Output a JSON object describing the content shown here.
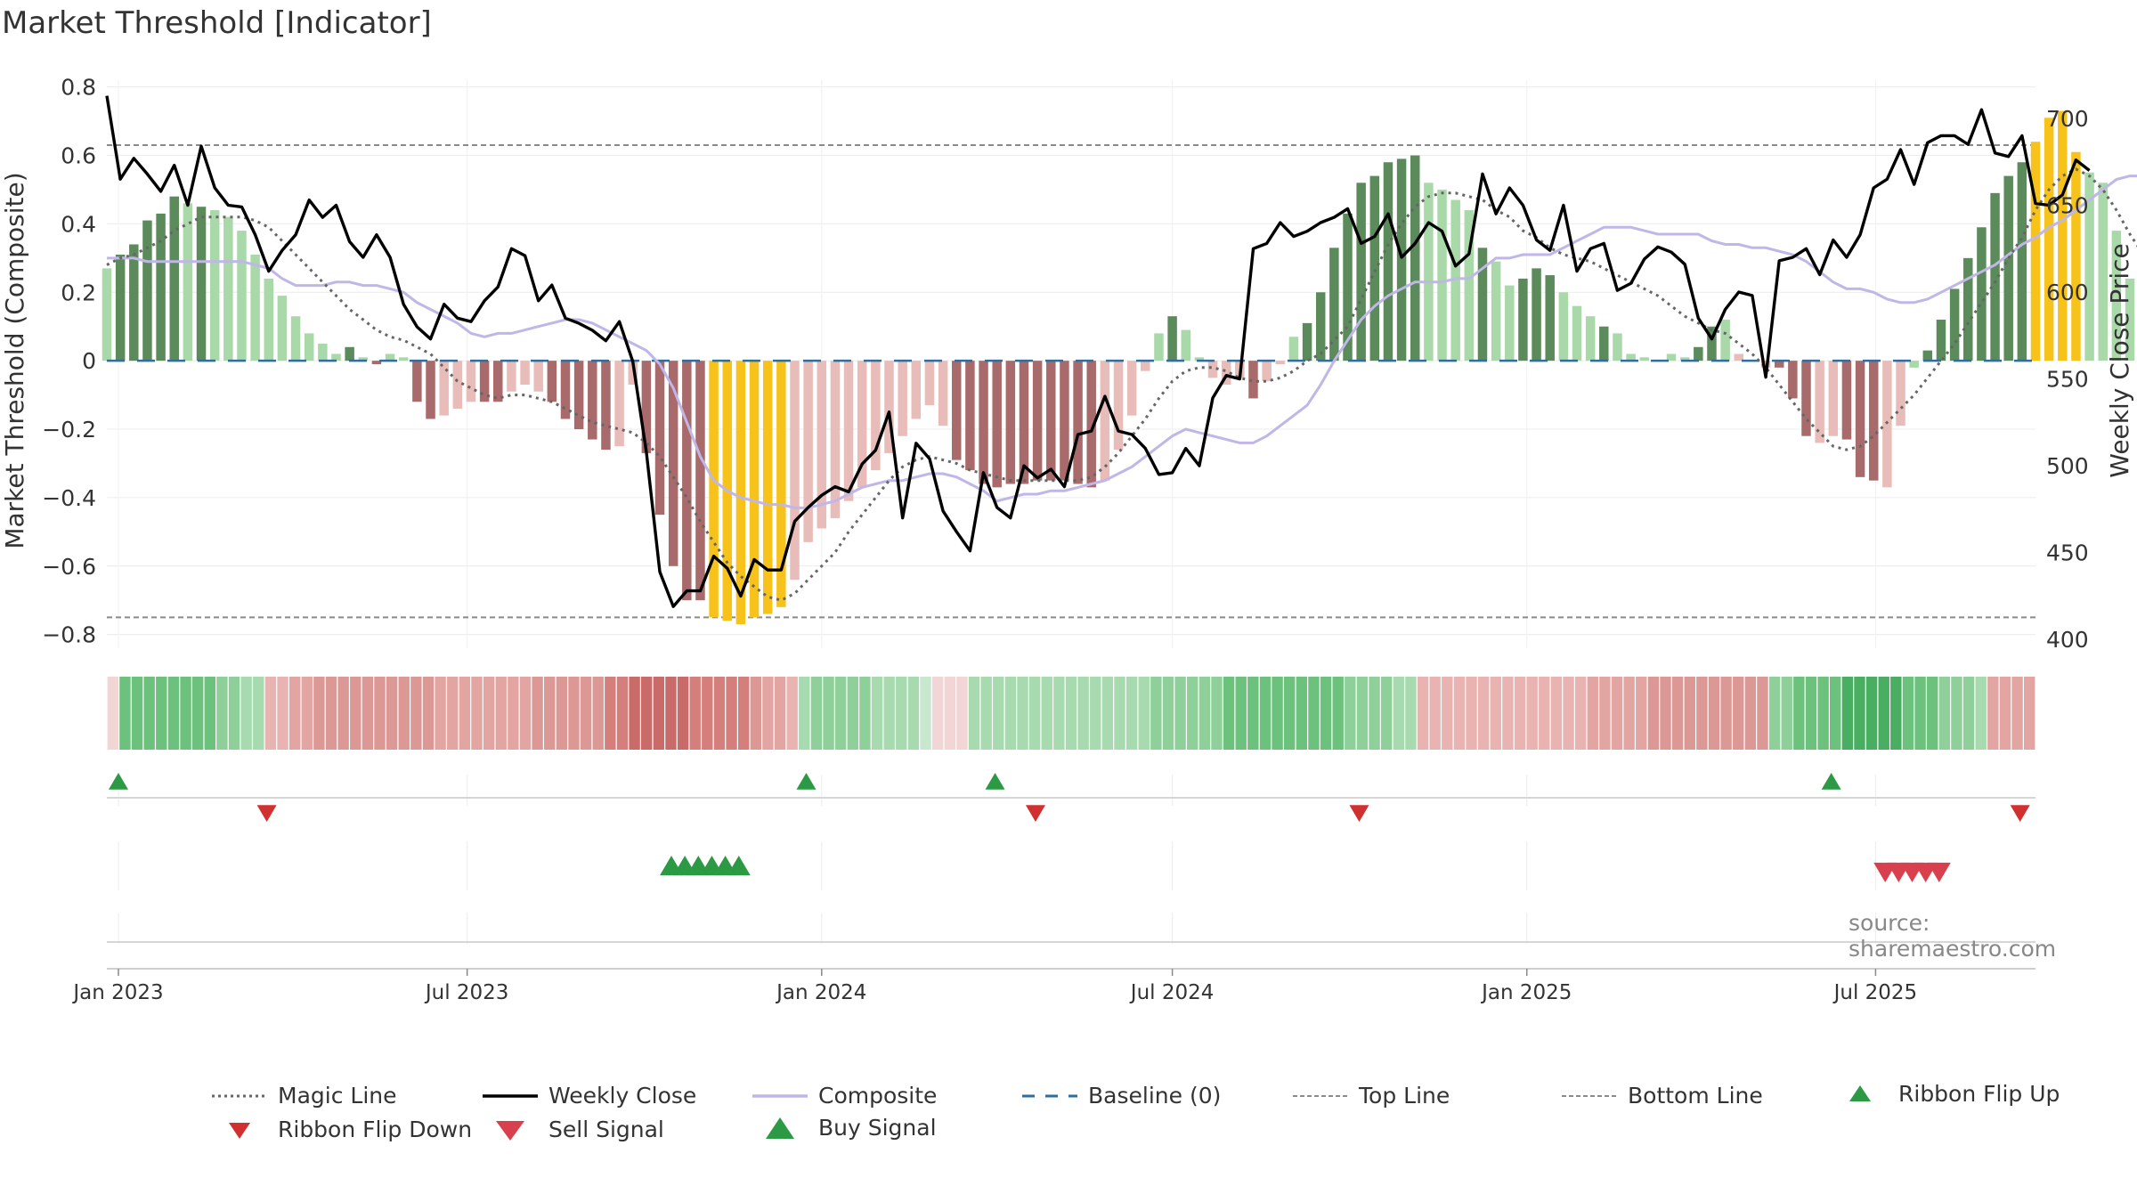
{
  "page": {
    "title": "Market Threshold [Indicator]",
    "source": "source: sharemaestro.com"
  },
  "chart_data": {
    "type": "bar",
    "title": "Market Threshold [Indicator]",
    "ylabel": "Market Threshold (Composite)",
    "y2label": "Weekly Close Price",
    "ylim": [
      -0.84,
      0.82
    ],
    "y2lim": [
      395,
      722
    ],
    "yticks": [
      0.8,
      0.6,
      0.4,
      0.2,
      0,
      -0.2,
      -0.4,
      -0.6,
      -0.8
    ],
    "yticklabels": [
      "0.8",
      "0.6",
      "0.4",
      "0.2",
      "0",
      "−0.2",
      "−0.4",
      "−0.6",
      "−0.8"
    ],
    "y2ticks": [
      700,
      650,
      600,
      550,
      500,
      450,
      400
    ],
    "y2ticklabels": [
      "700",
      "650",
      "600",
      "550",
      "500",
      "450",
      "400"
    ],
    "x_start": "2022-12-26",
    "x_end": "2025-09-22",
    "x_ticks": [
      {
        "date": "2023-01-01",
        "label": "Jan 2023"
      },
      {
        "date": "2023-07-01",
        "label": "Jul 2023"
      },
      {
        "date": "2024-01-01",
        "label": "Jan 2024"
      },
      {
        "date": "2024-07-01",
        "label": "Jul 2024"
      },
      {
        "date": "2025-01-01",
        "label": "Jan 2025"
      },
      {
        "date": "2025-07-01",
        "label": "Jul 2025"
      }
    ],
    "top_line": 0.63,
    "bottom_line": -0.75,
    "baseline": 0,
    "grid": true,
    "legend_position": "bottom",
    "colors": {
      "bull_strong": "#5b8a5b",
      "bull_weak": "#a9d8a9",
      "bear_strong": "#a86a6a",
      "bear_weak": "#e8bcb8",
      "extreme": "#f7c31a",
      "weekly_close": "#000000",
      "magic_line": "#666666",
      "composite": "#c0b6e8",
      "baseline": "#2f6fa0",
      "threshold": "#8a8a8a",
      "buy": "#2c9a44",
      "sell": "#d9404e",
      "flip_down": "#d03030",
      "ribbon_green": "#3e9e52",
      "ribbon_red": "#c86060"
    },
    "composite_bars": [
      0.27,
      0.31,
      0.34,
      0.41,
      0.43,
      0.48,
      0.46,
      0.45,
      0.44,
      0.42,
      0.38,
      0.31,
      0.24,
      0.19,
      0.13,
      0.08,
      0.05,
      0.02,
      0.04,
      0.01,
      -0.01,
      0.02,
      0.01,
      -0.12,
      -0.17,
      -0.16,
      -0.14,
      -0.12,
      -0.12,
      -0.12,
      -0.09,
      -0.07,
      -0.09,
      -0.12,
      -0.17,
      -0.2,
      -0.23,
      -0.26,
      -0.25,
      -0.07,
      -0.27,
      -0.45,
      -0.6,
      -0.7,
      -0.7,
      -0.75,
      -0.76,
      -0.77,
      -0.75,
      -0.74,
      -0.72,
      -0.64,
      -0.53,
      -0.49,
      -0.46,
      -0.41,
      -0.37,
      -0.32,
      -0.27,
      -0.22,
      -0.17,
      -0.13,
      -0.19,
      -0.29,
      -0.32,
      -0.36,
      -0.37,
      -0.36,
      -0.36,
      -0.35,
      -0.35,
      -0.35,
      -0.36,
      -0.37,
      -0.35,
      -0.26,
      -0.16,
      -0.03,
      0.08,
      0.13,
      0.09,
      0.01,
      -0.05,
      -0.07,
      -0.05,
      -0.11,
      -0.06,
      -0.01,
      0.07,
      0.11,
      0.2,
      0.33,
      0.43,
      0.52,
      0.54,
      0.58,
      0.59,
      0.6,
      0.52,
      0.5,
      0.47,
      0.44,
      0.33,
      0.29,
      0.22,
      0.24,
      0.27,
      0.25,
      0.2,
      0.16,
      0.13,
      0.1,
      0.08,
      0.02,
      0.01,
      0.0,
      0.02,
      0.01,
      0.04,
      0.1,
      0.12,
      0.02,
      0.0,
      -0.02,
      -0.02,
      -0.11,
      -0.22,
      -0.24,
      -0.22,
      -0.23,
      -0.34,
      -0.35,
      -0.37,
      -0.19,
      -0.02,
      0.03,
      0.12,
      0.21,
      0.3,
      0.39,
      0.49,
      0.54,
      0.58,
      0.64,
      0.71,
      0.73,
      0.61,
      0.55,
      0.52,
      0.38,
      0.24,
      0.14,
      0.13,
      0.14
    ],
    "bar_colors": [
      "bull_weak",
      "bull_strong",
      "bull_strong",
      "bull_strong",
      "bull_strong",
      "bull_strong",
      "bull_weak",
      "bull_strong",
      "bull_weak",
      "bull_weak",
      "bull_weak",
      "bull_weak",
      "bull_weak",
      "bull_weak",
      "bull_weak",
      "bull_weak",
      "bull_weak",
      "bull_weak",
      "bull_strong",
      "bull_weak",
      "bear_strong",
      "bull_weak",
      "bull_weak",
      "bear_strong",
      "bear_strong",
      "bear_weak",
      "bear_weak",
      "bear_weak",
      "bear_strong",
      "bear_strong",
      "bear_weak",
      "bear_weak",
      "bear_weak",
      "bear_strong",
      "bear_strong",
      "bear_strong",
      "bear_strong",
      "bear_strong",
      "bear_weak",
      "bear_weak",
      "bear_strong",
      "bear_strong",
      "bear_strong",
      "bear_strong",
      "bear_strong",
      "extreme",
      "extreme",
      "extreme",
      "extreme",
      "extreme",
      "extreme",
      "bear_weak",
      "bear_weak",
      "bear_weak",
      "bear_weak",
      "bear_weak",
      "bear_weak",
      "bear_weak",
      "bear_weak",
      "bear_weak",
      "bear_weak",
      "bear_weak",
      "bear_weak",
      "bear_strong",
      "bear_strong",
      "bear_strong",
      "bear_strong",
      "bear_strong",
      "bear_strong",
      "bear_strong",
      "bear_strong",
      "bear_strong",
      "bear_strong",
      "bear_strong",
      "bear_weak",
      "bear_weak",
      "bear_weak",
      "bear_weak",
      "bull_weak",
      "bull_strong",
      "bull_weak",
      "bull_weak",
      "bear_weak",
      "bear_weak",
      "bear_weak",
      "bear_strong",
      "bear_weak",
      "bear_weak",
      "bull_weak",
      "bull_strong",
      "bull_strong",
      "bull_strong",
      "bull_strong",
      "bull_strong",
      "bull_strong",
      "bull_strong",
      "bull_strong",
      "bull_strong",
      "bull_weak",
      "bull_weak",
      "bull_weak",
      "bull_weak",
      "bull_strong",
      "bull_weak",
      "bull_weak",
      "bull_strong",
      "bull_strong",
      "bull_strong",
      "bull_weak",
      "bull_weak",
      "bull_weak",
      "bull_strong",
      "bull_weak",
      "bull_weak",
      "bull_weak",
      "bull_weak",
      "bull_weak",
      "bull_weak",
      "bull_strong",
      "bull_strong",
      "bull_weak",
      "bear_weak",
      "bear_weak",
      "bear_weak",
      "bear_strong",
      "bear_strong",
      "bear_strong",
      "bear_weak",
      "bear_weak",
      "bear_strong",
      "bear_strong",
      "bear_strong",
      "bear_weak",
      "bear_weak",
      "bull_weak",
      "bull_strong",
      "bull_strong",
      "bull_strong",
      "bull_strong",
      "bull_strong",
      "bull_strong",
      "bull_strong",
      "bull_strong",
      "extreme",
      "extreme",
      "extreme",
      "extreme",
      "bull_weak",
      "bull_weak",
      "bull_weak",
      "bull_weak",
      "bull_weak",
      "bull_weak",
      "bull_strong"
    ],
    "composite_line": [
      0.3,
      0.3,
      0.3,
      0.29,
      0.29,
      0.29,
      0.29,
      0.29,
      0.29,
      0.29,
      0.29,
      0.28,
      0.27,
      0.24,
      0.22,
      0.22,
      0.22,
      0.23,
      0.23,
      0.22,
      0.22,
      0.21,
      0.2,
      0.17,
      0.15,
      0.13,
      0.11,
      0.08,
      0.07,
      0.08,
      0.08,
      0.09,
      0.1,
      0.11,
      0.12,
      0.12,
      0.11,
      0.09,
      0.07,
      0.05,
      0.03,
      -0.01,
      -0.08,
      -0.18,
      -0.28,
      -0.35,
      -0.38,
      -0.4,
      -0.41,
      -0.42,
      -0.42,
      -0.43,
      -0.43,
      -0.42,
      -0.41,
      -0.39,
      -0.37,
      -0.36,
      -0.35,
      -0.35,
      -0.34,
      -0.33,
      -0.33,
      -0.34,
      -0.36,
      -0.38,
      -0.41,
      -0.4,
      -0.39,
      -0.39,
      -0.38,
      -0.38,
      -0.37,
      -0.36,
      -0.35,
      -0.33,
      -0.31,
      -0.28,
      -0.25,
      -0.22,
      -0.2,
      -0.21,
      -0.22,
      -0.23,
      -0.24,
      -0.24,
      -0.22,
      -0.19,
      -0.16,
      -0.13,
      -0.07,
      0.0,
      0.06,
      0.12,
      0.16,
      0.19,
      0.21,
      0.23,
      0.23,
      0.23,
      0.24,
      0.24,
      0.27,
      0.3,
      0.3,
      0.31,
      0.31,
      0.31,
      0.33,
      0.35,
      0.37,
      0.39,
      0.39,
      0.39,
      0.38,
      0.37,
      0.37,
      0.37,
      0.37,
      0.35,
      0.34,
      0.34,
      0.33,
      0.33,
      0.32,
      0.31,
      0.29,
      0.26,
      0.23,
      0.21,
      0.21,
      0.2,
      0.18,
      0.17,
      0.17,
      0.18,
      0.2,
      0.22,
      0.24,
      0.26,
      0.28,
      0.31,
      0.34,
      0.36,
      0.39,
      0.41,
      0.44,
      0.47,
      0.5,
      0.53,
      0.54,
      0.54,
      0.53,
      0.52,
      0.51,
      0.51,
      0.52
    ],
    "magic_line": [
      0.28,
      0.3,
      0.31,
      0.33,
      0.35,
      0.38,
      0.4,
      0.42,
      0.42,
      0.42,
      0.42,
      0.41,
      0.39,
      0.35,
      0.31,
      0.27,
      0.23,
      0.19,
      0.15,
      0.12,
      0.09,
      0.07,
      0.06,
      0.04,
      0.02,
      -0.02,
      -0.06,
      -0.08,
      -0.1,
      -0.11,
      -0.1,
      -0.1,
      -0.11,
      -0.12,
      -0.14,
      -0.16,
      -0.18,
      -0.19,
      -0.2,
      -0.21,
      -0.24,
      -0.28,
      -0.34,
      -0.4,
      -0.47,
      -0.53,
      -0.59,
      -0.63,
      -0.66,
      -0.69,
      -0.7,
      -0.68,
      -0.64,
      -0.6,
      -0.56,
      -0.5,
      -0.45,
      -0.4,
      -0.35,
      -0.31,
      -0.29,
      -0.28,
      -0.29,
      -0.3,
      -0.32,
      -0.33,
      -0.34,
      -0.35,
      -0.35,
      -0.35,
      -0.35,
      -0.35,
      -0.35,
      -0.34,
      -0.31,
      -0.27,
      -0.22,
      -0.17,
      -0.11,
      -0.06,
      -0.03,
      -0.02,
      -0.02,
      -0.03,
      -0.05,
      -0.06,
      -0.06,
      -0.05,
      -0.03,
      0.0,
      0.02,
      0.06,
      0.1,
      0.18,
      0.26,
      0.34,
      0.4,
      0.45,
      0.48,
      0.49,
      0.49,
      0.48,
      0.47,
      0.44,
      0.42,
      0.38,
      0.36,
      0.33,
      0.31,
      0.3,
      0.29,
      0.27,
      0.25,
      0.23,
      0.21,
      0.19,
      0.16,
      0.13,
      0.11,
      0.09,
      0.08,
      0.05,
      0.02,
      -0.02,
      -0.07,
      -0.12,
      -0.17,
      -0.21,
      -0.25,
      -0.26,
      -0.25,
      -0.22,
      -0.18,
      -0.14,
      -0.1,
      -0.05,
      0.0,
      0.05,
      0.11,
      0.17,
      0.23,
      0.3,
      0.36,
      0.44,
      0.5,
      0.54,
      0.56,
      0.54,
      0.5,
      0.44,
      0.37,
      0.31,
      0.28,
      0.25
    ],
    "weekly_close": [
      713,
      665,
      677,
      668,
      658,
      673,
      650,
      684,
      660,
      650,
      649,
      633,
      612,
      624,
      633,
      653,
      643,
      650,
      629,
      620,
      633,
      620,
      593,
      580,
      573,
      593,
      585,
      583,
      595,
      603,
      625,
      621,
      595,
      604,
      585,
      582,
      578,
      572,
      583,
      560,
      508,
      439,
      419,
      428,
      428,
      448,
      441,
      425,
      446,
      440,
      440,
      468,
      476,
      483,
      488,
      485,
      501,
      509,
      531,
      470,
      513,
      504,
      474,
      462,
      451,
      496,
      476,
      470,
      500,
      493,
      498,
      488,
      518,
      520,
      540,
      520,
      518,
      510,
      495,
      496,
      510,
      500,
      539,
      552,
      550,
      625,
      628,
      640,
      632,
      635,
      640,
      643,
      648,
      628,
      632,
      645,
      620,
      628,
      640,
      635,
      615,
      622,
      668,
      645,
      660,
      650,
      630,
      624,
      650,
      612,
      625,
      628,
      601,
      605,
      619,
      626,
      623,
      616,
      585,
      573,
      590,
      600,
      598,
      551,
      618,
      620,
      625,
      610,
      630,
      620,
      633,
      660,
      665,
      682,
      662,
      686,
      690,
      690,
      685,
      705,
      680,
      678,
      690,
      651,
      650,
      656,
      676,
      670
    ]
  },
  "ribbon": {
    "colors": [
      "#f2d6d6",
      "#6cc17c",
      "#6cc17c",
      "#6cc17c",
      "#6cc17c",
      "#6cc17c",
      "#6cc17c",
      "#6cc17c",
      "#6cc17c",
      "#8fcf99",
      "#8fcf99",
      "#a7daaf",
      "#a7daaf",
      "#e8b3b0",
      "#e8b3b0",
      "#e3a5a2",
      "#e3a5a2",
      "#dc9894",
      "#dc9894",
      "#dc9894",
      "#dc9894",
      "#dc9894",
      "#dc9894",
      "#dc9894",
      "#dc9894",
      "#dc9894",
      "#dc9894",
      "#e3a5a2",
      "#e3a5a2",
      "#e3a5a2",
      "#e3a5a2",
      "#e3a5a2",
      "#e3a5a2",
      "#e3a5a2",
      "#e3a5a2",
      "#dc9894",
      "#dc9894",
      "#dc9894",
      "#dc9894",
      "#dc9894",
      "#dc9894",
      "#d47f7b",
      "#d47f7b",
      "#c96c69",
      "#c96c69",
      "#c96c69",
      "#c96c69",
      "#c96c69",
      "#d47f7b",
      "#d47f7b",
      "#d47f7b",
      "#d47f7b",
      "#d47f7b",
      "#dc9894",
      "#e3a5a2",
      "#e3a5a2",
      "#e8b3b0",
      "#a7daaf",
      "#8fcf99",
      "#8fcf99",
      "#8fcf99",
      "#8fcf99",
      "#8fcf99",
      "#a7daaf",
      "#a7daaf",
      "#a7daaf",
      "#a7daaf",
      "#c7e8cc",
      "#f2d6d6",
      "#f2d6d6",
      "#f2d6d6",
      "#a7daaf",
      "#a7daaf",
      "#a7daaf",
      "#a7daaf",
      "#a7daaf",
      "#a7daaf",
      "#a7daaf",
      "#a7daaf",
      "#a7daaf",
      "#a7daaf",
      "#a7daaf",
      "#a7daaf",
      "#a7daaf",
      "#a7daaf",
      "#a7daaf",
      "#8fcf99",
      "#8fcf99",
      "#8fcf99",
      "#8fcf99",
      "#8fcf99",
      "#8fcf99",
      "#6cc17c",
      "#6cc17c",
      "#6cc17c",
      "#6cc17c",
      "#6cc17c",
      "#6cc17c",
      "#6cc17c",
      "#6cc17c",
      "#6cc17c",
      "#6cc17c",
      "#8fcf99",
      "#8fcf99",
      "#8fcf99",
      "#8fcf99",
      "#a7daaf",
      "#a7daaf",
      "#e8b3b0",
      "#e8b3b0",
      "#e8b3b0",
      "#e8b3b0",
      "#e8b3b0",
      "#e8b3b0",
      "#e8b3b0",
      "#e8b3b0",
      "#e8b3b0",
      "#e8b3b0",
      "#e8b3b0",
      "#e8b3b0",
      "#e8b3b0",
      "#e8b3b0",
      "#e3a5a2",
      "#e3a5a2",
      "#e3a5a2",
      "#e3a5a2",
      "#e3a5a2",
      "#dc9894",
      "#dc9894",
      "#dc9894",
      "#dc9894",
      "#dc9894",
      "#dc9894",
      "#dc9894",
      "#dc9894",
      "#dc9894",
      "#dc9894",
      "#8fcf99",
      "#8fcf99",
      "#6cc17c",
      "#6cc17c",
      "#6cc17c",
      "#6cc17c",
      "#4aae62",
      "#4aae62",
      "#4aae62",
      "#4aae62",
      "#4aae62",
      "#6cc17c",
      "#6cc17c",
      "#6cc17c",
      "#8fcf99",
      "#8fcf99",
      "#8fcf99",
      "#a7daaf",
      "#e3a5a2",
      "#e3a5a2",
      "#e3a5a2",
      "#e3a5a2"
    ]
  },
  "signals": {
    "ribbon_flip_up": [
      "2023-01-01",
      "2023-12-24",
      "2024-03-31",
      "2025-06-08"
    ],
    "ribbon_flip_down": [
      "2023-03-19",
      "2024-04-21",
      "2024-10-06",
      "2025-09-14"
    ],
    "buy_signal": [
      "2023-10-15",
      "2023-10-22",
      "2023-10-29",
      "2023-11-05",
      "2023-11-12",
      "2023-11-19"
    ],
    "sell_signal": [
      "2025-07-06",
      "2025-07-13",
      "2025-07-20",
      "2025-07-27",
      "2025-08-03"
    ]
  },
  "legend": {
    "magic_line": "Magic Line",
    "weekly_close": "Weekly Close",
    "composite": "Composite",
    "baseline": "Baseline (0)",
    "top_line": "Top Line",
    "bottom_line": "Bottom Line",
    "ribbon_flip_up": "Ribbon Flip Up",
    "ribbon_flip_down": "Ribbon Flip Down",
    "sell_signal": "Sell Signal",
    "buy_signal": "Buy Signal"
  },
  "icons": {
    "ribbon_flip_up": "triangle-up-icon",
    "ribbon_flip_down": "triangle-down-icon",
    "sell_signal": "triangle-down-icon",
    "buy_signal": "triangle-up-icon"
  }
}
